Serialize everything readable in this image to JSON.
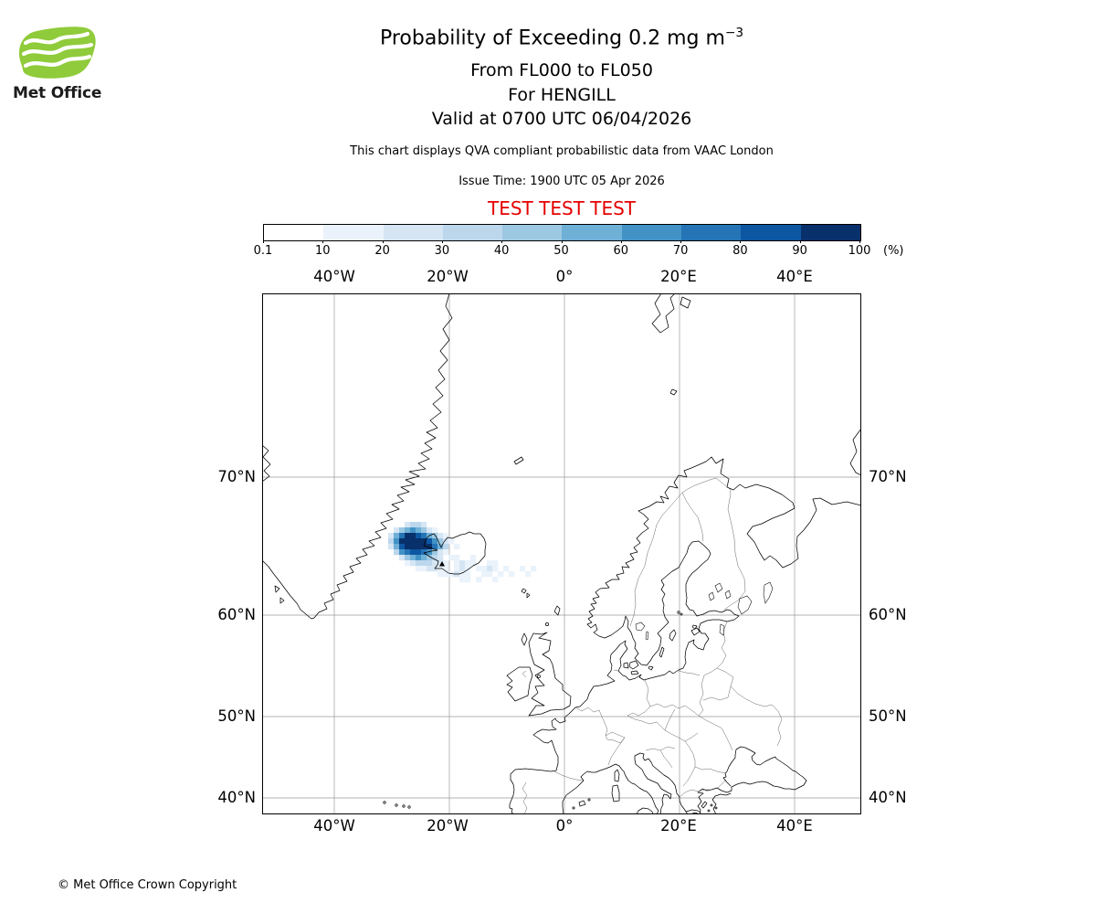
{
  "header": {
    "logo_text": "Met Office",
    "title_prefix": "Probability of Exceeding 0.2 mg m",
    "title_superscript": "−3",
    "subtitle_lines": [
      "From FL000 to FL050",
      "For HENGILL",
      "Valid at 0700 UTC 06/04/2026"
    ],
    "note": "This chart displays QVA compliant probabilistic data from VAAC London",
    "issue_time": "Issue Time: 1900 UTC 05 Apr 2026",
    "test_banner": "TEST TEST TEST",
    "test_banner_color": "#e50000"
  },
  "legend": {
    "tick_labels": [
      "0.1",
      "10",
      "20",
      "30",
      "40",
      "50",
      "60",
      "70",
      "80",
      "90",
      "100"
    ],
    "unit_label": "(%)",
    "colors": [
      "#ffffff",
      "#eaf3fb",
      "#d5e5f4",
      "#bcd7ec",
      "#9cc8e2",
      "#6fb0d7",
      "#4292c6",
      "#2474b6",
      "#0d57a2",
      "#08306b"
    ]
  },
  "map": {
    "lon_labels": [
      "40°W",
      "20°W",
      "0°",
      "20°E",
      "40°E"
    ],
    "lat_labels": [
      "70°N",
      "60°N",
      "50°N",
      "40°N"
    ]
  },
  "footer": {
    "copyright": "© Met Office Crown Copyright"
  },
  "chart_data": {
    "type": "heatmap",
    "title": "Probability of Exceeding 0.2 mg m−3",
    "flight_levels": "FL000 to FL050",
    "volcano": "HENGILL",
    "valid_time": "0700 UTC 06/04/2026",
    "issue_time": "1900 UTC 05 Apr 2026",
    "source": "VAAC London",
    "unit": "%",
    "scale_boundaries_percent": [
      0.1,
      10,
      20,
      30,
      40,
      50,
      60,
      70,
      80,
      90,
      100
    ],
    "lon_ticks_deg": [
      -40,
      -20,
      0,
      20,
      40
    ],
    "lat_ticks_deg": [
      70,
      60,
      50,
      40
    ],
    "plume_description": "Highest probabilities (80-100%) form a compact blob centred near 65.5N 27W just west of Iceland; 10-60% values cover western Iceland with a thin 10-30% trail extending east-southeast to roughly 63N 8W.",
    "plume_grid": {
      "note": "Digits are probability bin indices into legend colors (1 = 10-20% ... 9 = 90-100%); rows run north to south (~67N to 61N), columns west to east from ~31.5W.",
      "rows": [
        "....2332",
        "..24565421",
        ".25799875421",
        ".369999986421",
        ".25899999753.1",
        "..3678876421",
        "...24565432.11..1",
        "....12333221.1211..11",
        "......112211.121.1121.1..1.1",
        "..........111211..11.1.1..1",
        "..............11.1..1"
      ]
    }
  }
}
